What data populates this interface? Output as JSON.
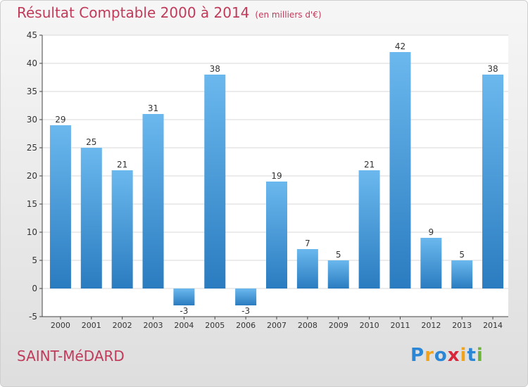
{
  "title": "Résultat Comptable 2000 à 2014",
  "subtitle": "(en milliers d'€)",
  "town": "SAINT-MéDARD",
  "logo": {
    "text": "Proxiti",
    "letters": [
      {
        "ch": "P",
        "color": "#2b86d6"
      },
      {
        "ch": "r",
        "color": "#f2a31c"
      },
      {
        "ch": "o",
        "color": "#2b86d6"
      },
      {
        "ch": "x",
        "color": "#d9263b"
      },
      {
        "ch": "i",
        "color": "#f2a31c"
      },
      {
        "ch": "t",
        "color": "#2b86d6"
      },
      {
        "ch": "i",
        "color": "#6cb33e"
      }
    ]
  },
  "colors": {
    "bar_light": "#6bb8ee",
    "bar_dark": "#2a7cc0",
    "title": "#c03a5a",
    "axis": "#444444",
    "grid": "#d8d8d8"
  },
  "chart_data": {
    "type": "bar",
    "categories": [
      "2000",
      "2001",
      "2002",
      "2003",
      "2004",
      "2005",
      "2006",
      "2007",
      "2008",
      "2009",
      "2010",
      "2011",
      "2012",
      "2013",
      "2014"
    ],
    "values": [
      29,
      25,
      21,
      31,
      -3,
      38,
      -3,
      19,
      7,
      5,
      21,
      42,
      9,
      5,
      38
    ],
    "ylim": [
      -5,
      45
    ],
    "yticks": [
      -5,
      0,
      5,
      10,
      15,
      20,
      25,
      30,
      35,
      40,
      45
    ],
    "grid": true
  }
}
